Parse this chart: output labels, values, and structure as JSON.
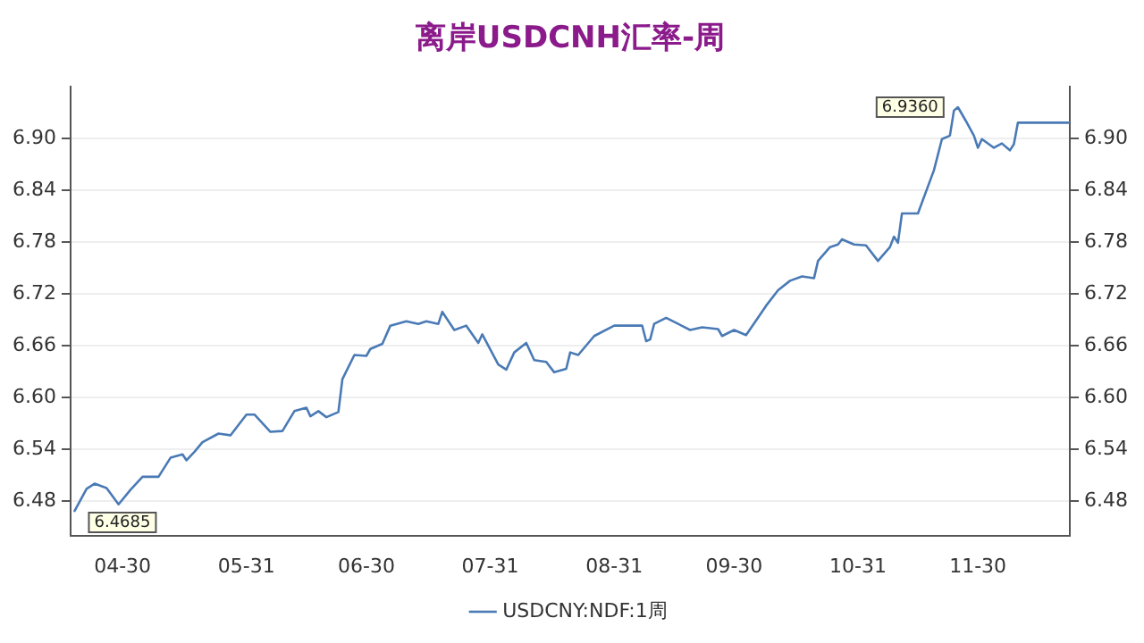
{
  "chart_data": {
    "type": "line",
    "title": "离岸USDCNH汇率-周",
    "xlim": [
      "--04-17",
      "--12-23"
    ],
    "xticks": [
      {
        "value": "--04-30",
        "label": "04-30"
      },
      {
        "value": "--05-31",
        "label": "05-31"
      },
      {
        "value": "--06-30",
        "label": "06-30"
      },
      {
        "value": "--07-31",
        "label": "07-31"
      },
      {
        "value": "--08-31",
        "label": "08-31"
      },
      {
        "value": "--09-30",
        "label": "09-30"
      },
      {
        "value": "--10-31",
        "label": "10-31"
      },
      {
        "value": "--11-30",
        "label": "11-30"
      }
    ],
    "ylim": [
      6.44,
      6.96
    ],
    "yticks": [
      {
        "value": 6.48,
        "label": "6.48"
      },
      {
        "value": 6.54,
        "label": "6.54"
      },
      {
        "value": 6.6,
        "label": "6.60"
      },
      {
        "value": 6.66,
        "label": "6.66"
      },
      {
        "value": 6.72,
        "label": "6.72"
      },
      {
        "value": 6.78,
        "label": "6.78"
      },
      {
        "value": 6.84,
        "label": "6.84"
      },
      {
        "value": 6.9,
        "label": "6.90"
      }
    ],
    "y2lim": [
      6.44,
      6.96
    ],
    "y2ticks": [
      {
        "value": 6.48,
        "label": "6.48"
      },
      {
        "value": 6.54,
        "label": "6.54"
      },
      {
        "value": 6.6,
        "label": "6.60"
      },
      {
        "value": 6.66,
        "label": "6.66"
      },
      {
        "value": 6.72,
        "label": "6.72"
      },
      {
        "value": 6.78,
        "label": "6.78"
      },
      {
        "value": 6.84,
        "label": "6.84"
      },
      {
        "value": 6.9,
        "label": "6.90"
      }
    ],
    "grid": "y",
    "legend": "bottom",
    "marker": "none",
    "line_style": "solid",
    "annotations": [
      {
        "text": "6.4685",
        "x": "--04-18",
        "y": 6.4685
      },
      {
        "text": "6.9360",
        "x": "--11-25",
        "y": 6.936
      }
    ],
    "series": [
      {
        "name": "USDCNY:NDF:1周",
        "color": "#4a7ab5",
        "x": [
          "--04-18",
          "--04-21",
          "--04-23",
          "--04-26",
          "--04-29",
          "--05-02",
          "--05-05",
          "--05-09",
          "--05-12",
          "--05-15",
          "--05-16",
          "--05-18",
          "--05-20",
          "--05-24",
          "--05-27",
          "--05-31",
          "--06-02",
          "--06-06",
          "--06-09",
          "--06-12",
          "--06-15",
          "--06-16",
          "--06-18",
          "--06-20",
          "--06-23",
          "--06-24",
          "--06-27",
          "--06-30",
          "--07-01",
          "--07-04",
          "--07-06",
          "--07-10",
          "--07-13",
          "--07-15",
          "--07-18",
          "--07-19",
          "--07-22",
          "--07-25",
          "--07-28",
          "--07-29",
          "--08-02",
          "--08-04",
          "--08-06",
          "--08-09",
          "--08-11",
          "--08-14",
          "--08-16",
          "--08-19",
          "--08-20",
          "--08-22",
          "--08-26",
          "--08-31",
          "--09-07",
          "--09-08",
          "--09-09",
          "--09-10",
          "--09-13",
          "--09-16",
          "--09-19",
          "--09-22",
          "--09-26",
          "--09-27",
          "--09-30",
          "--10-03",
          "--10-08",
          "--10-11",
          "--10-14",
          "--10-17",
          "--10-20",
          "--10-21",
          "--10-24",
          "--10-26",
          "--10-27",
          "--10-30",
          "--11-02",
          "--11-05",
          "--11-08",
          "--11-09",
          "--11-10",
          "--11-11",
          "--11-15",
          "--11-19",
          "--11-21",
          "--11-23",
          "--11-24",
          "--11-25",
          "--11-27",
          "--11-29",
          "--11-30",
          "--12-01",
          "--12-04",
          "--12-06",
          "--12-08",
          "--12-09",
          "--12-10",
          "--12-23"
        ],
        "values": [
          6.4685,
          6.494,
          6.5,
          6.495,
          6.476,
          6.493,
          6.508,
          6.508,
          6.53,
          6.534,
          6.527,
          6.537,
          6.548,
          6.558,
          6.556,
          6.58,
          6.58,
          6.56,
          6.561,
          6.584,
          6.588,
          6.578,
          6.584,
          6.577,
          6.583,
          6.621,
          6.649,
          6.648,
          6.656,
          6.662,
          6.683,
          6.688,
          6.685,
          6.688,
          6.685,
          6.699,
          6.678,
          6.683,
          6.663,
          6.673,
          6.638,
          6.632,
          6.652,
          6.663,
          6.643,
          6.641,
          6.629,
          6.633,
          6.652,
          6.649,
          6.671,
          6.683,
          6.683,
          6.665,
          6.667,
          6.685,
          6.692,
          6.685,
          6.678,
          6.681,
          6.679,
          6.671,
          6.678,
          6.672,
          6.706,
          6.724,
          6.735,
          6.74,
          6.738,
          6.758,
          6.774,
          6.777,
          6.783,
          6.777,
          6.776,
          6.758,
          6.774,
          6.786,
          6.779,
          6.813,
          6.813,
          6.863,
          6.899,
          6.903,
          6.932,
          6.936,
          6.92,
          6.903,
          6.889,
          6.899,
          6.889,
          6.894,
          6.886,
          6.893,
          6.918,
          6.918
        ]
      }
    ]
  }
}
